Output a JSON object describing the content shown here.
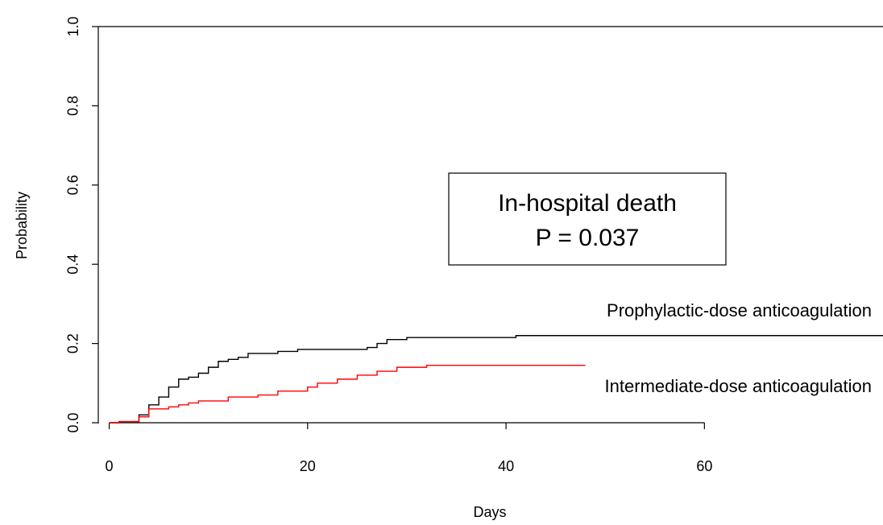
{
  "chart_data": {
    "type": "line",
    "step": true,
    "xlabel": "Days",
    "ylabel": "Probability",
    "xlim": [
      -1.1,
      78
    ],
    "ylim": [
      0,
      1
    ],
    "xticks": [
      0,
      20,
      40,
      60
    ],
    "yticks": [
      {
        "value": 0,
        "label": "0.0"
      },
      0.2,
      0.4,
      0.6,
      0.8,
      {
        "value": 1,
        "label": "1.0"
      }
    ],
    "series": [
      {
        "name": "Prophylactic-dose anticoagulation",
        "color": "#000000",
        "x": [
          0,
          1,
          3,
          4,
          5,
          6,
          7,
          8,
          9,
          10,
          11,
          12,
          13,
          14,
          17,
          19,
          26,
          27,
          28,
          30,
          41,
          78
        ],
        "values": [
          0,
          0.003,
          0.02,
          0.045,
          0.065,
          0.09,
          0.11,
          0.115,
          0.125,
          0.14,
          0.155,
          0.16,
          0.165,
          0.175,
          0.18,
          0.185,
          0.19,
          0.2,
          0.21,
          0.215,
          0.22,
          0.22
        ]
      },
      {
        "name": "Intermediate-dose anticoagulation",
        "color": "#ff0000",
        "x": [
          0,
          1,
          3,
          4,
          6,
          7,
          8,
          9,
          12,
          15,
          17,
          20,
          21,
          23,
          25,
          27,
          29,
          32,
          48
        ],
        "values": [
          0,
          0.003,
          0.015,
          0.035,
          0.04,
          0.045,
          0.05,
          0.055,
          0.065,
          0.07,
          0.08,
          0.09,
          0.1,
          0.11,
          0.12,
          0.13,
          0.14,
          0.145,
          0.145
        ]
      }
    ],
    "annotations": [
      "In-hospital death",
      "P = 0.037"
    ]
  }
}
